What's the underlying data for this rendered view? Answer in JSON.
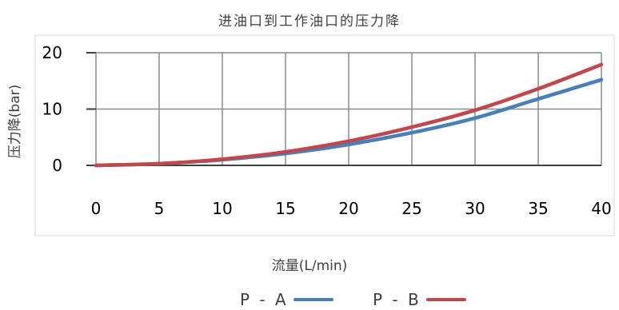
{
  "chart_data": {
    "type": "line",
    "title": "进油口到工作油口的压力降",
    "xlabel": "流量(L/min)",
    "ylabel": "压力降(bar)",
    "xlim": [
      0,
      40
    ],
    "ylim": [
      0,
      20
    ],
    "x_ticks": [
      "0",
      "5",
      "10",
      "15",
      "20",
      "25",
      "30",
      "35",
      "40"
    ],
    "y_ticks": [
      "0",
      "10",
      "20"
    ],
    "grid": true,
    "legend_position": "bottom",
    "series": [
      {
        "name": "P - A",
        "color": "#4a7eb8",
        "x": [
          0,
          5,
          10,
          15,
          20,
          25,
          30,
          35,
          40
        ],
        "y": [
          0,
          0.3,
          1.0,
          2.1,
          3.7,
          5.8,
          8.4,
          11.8,
          15.2
        ]
      },
      {
        "name": "P - B",
        "color": "#c0484c",
        "x": [
          0,
          5,
          10,
          15,
          20,
          25,
          30,
          35,
          40
        ],
        "y": [
          0,
          0.3,
          1.1,
          2.4,
          4.3,
          6.8,
          9.8,
          13.6,
          17.9
        ]
      }
    ]
  }
}
